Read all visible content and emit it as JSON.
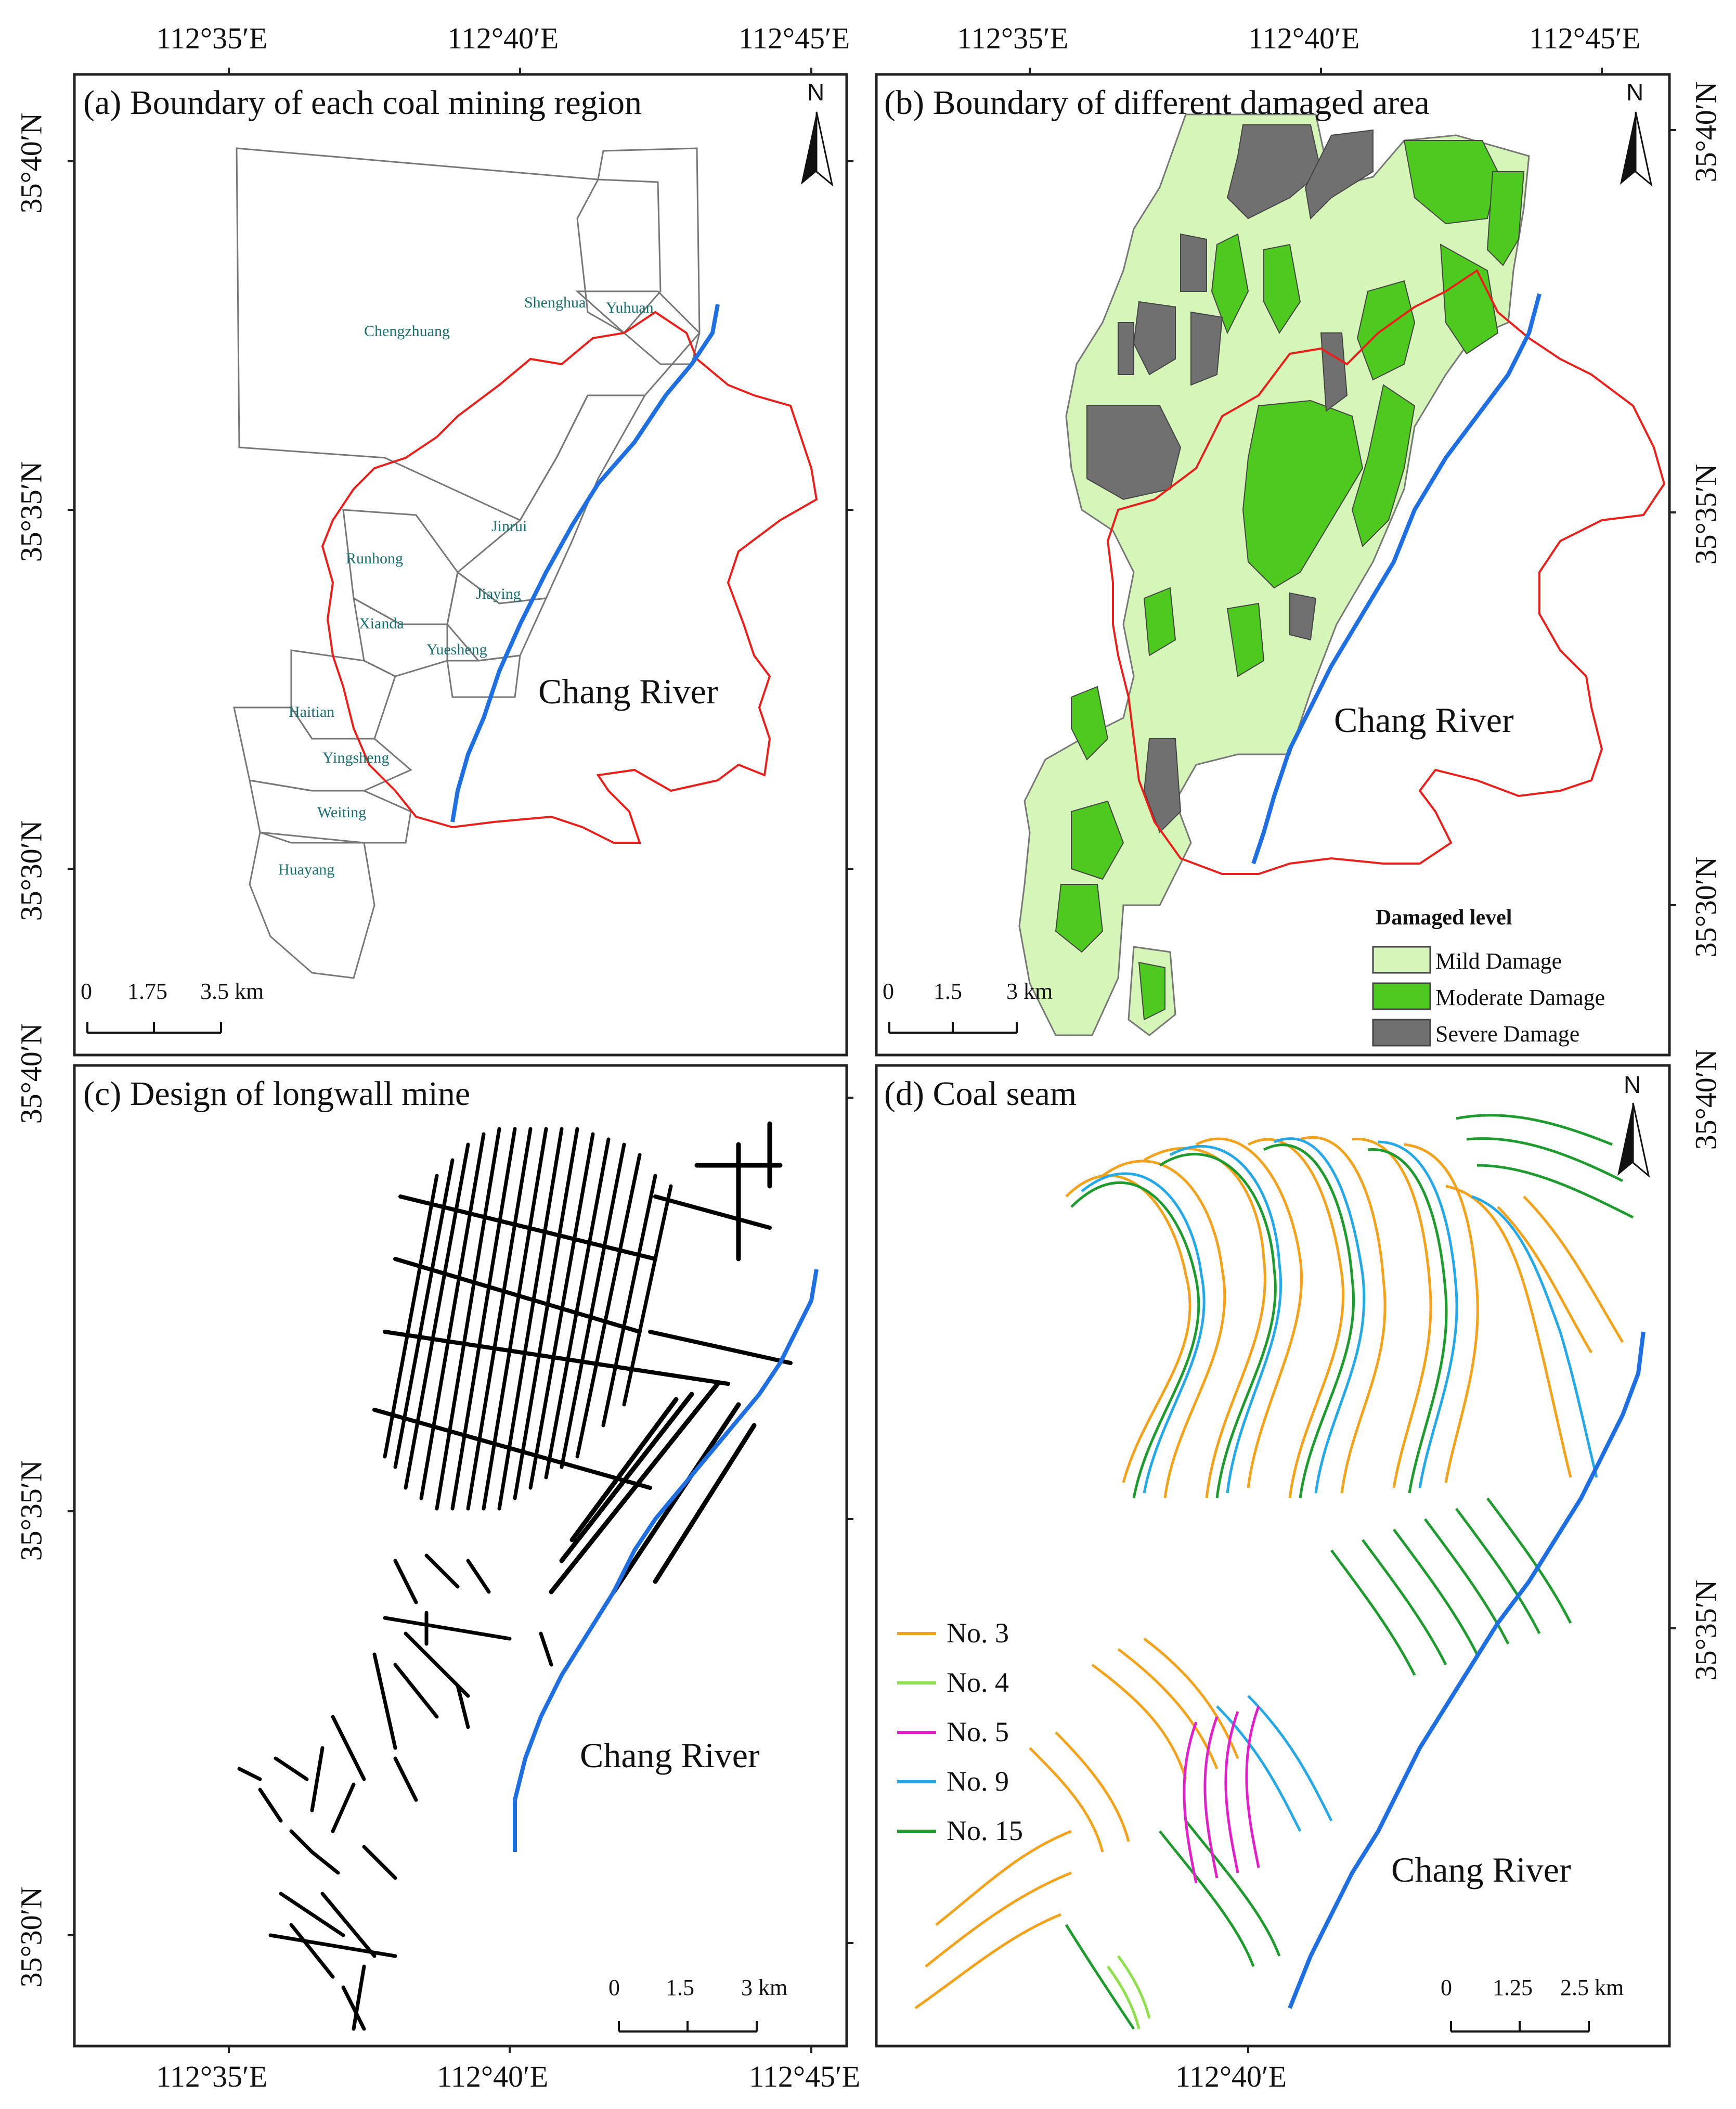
{
  "colors": {
    "frame": "#222222",
    "boundary_red": "#e8201c",
    "river_blue": "#1f6fe0",
    "region_line": "#777777",
    "mild": "#d6f5b8",
    "moderate": "#4ec91f",
    "severe": "#707070",
    "mine": "#000000",
    "seam_no3": "#f2a21c",
    "seam_no4": "#8de04a",
    "seam_no5": "#e020c8",
    "seam_no9": "#27a8e6",
    "seam_no15": "#1e9a2e"
  },
  "coords": {
    "top_lon": [
      "112°35′E",
      "112°40′E",
      "112°45′E",
      "112°35′E",
      "112°40′E",
      "112°45′E"
    ],
    "bottom_lon": [
      "112°35′E",
      "112°40′E",
      "112°45′E",
      "112°40′E"
    ],
    "left_lat": [
      "35°40′N",
      "35°35′N",
      "35°30′N",
      "35°40′N",
      "35°35′N",
      "35°30′N"
    ],
    "right_lat": [
      "35°40′N",
      "35°35′N",
      "35°30′N",
      "35°40′N",
      "35°35′N"
    ]
  },
  "panels": {
    "a": {
      "title": "(a)  Boundary of each coal mining region",
      "north": "N",
      "river": "Chang River",
      "regions": [
        "Chengzhuang",
        "Shenghua",
        "Yuhuan",
        "Jinrui",
        "Runhong",
        "Jiaying",
        "Xianda",
        "Yuesheng",
        "Haitian",
        "Yingsheng",
        "Weiting",
        "Huayang"
      ],
      "scale": [
        "0",
        "1.75",
        "3.5  km"
      ]
    },
    "b": {
      "title": "(b)  Boundary of different damaged area",
      "north": "N",
      "river": "Chang River",
      "legend_title": "Damaged level",
      "legend": [
        "Mild Damage",
        "Moderate Damage",
        "Severe Damage"
      ],
      "scale": [
        "0",
        "1.5",
        "3  km"
      ]
    },
    "c": {
      "title": "(c)  Design of longwall mine",
      "river": "Chang River",
      "scale": [
        "0",
        "1.5",
        "3 km"
      ]
    },
    "d": {
      "title": "(d)  Coal seam",
      "north": "N",
      "river": "Chang River",
      "legend": [
        "No. 3",
        "No. 4",
        "No. 5",
        "No. 9",
        "No. 15"
      ],
      "scale": [
        "0",
        "1.25",
        "2.5 km"
      ]
    }
  }
}
